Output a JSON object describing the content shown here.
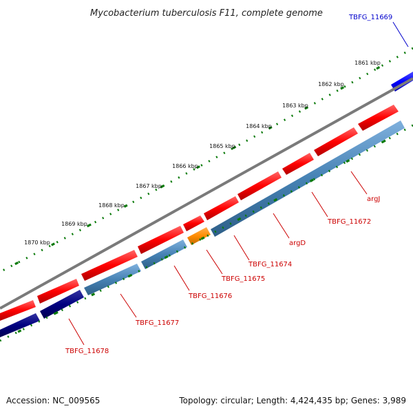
{
  "title": "Mycobacterium tuberculosis F11, complete genome",
  "footer": {
    "accession": "Accession: NC_009565",
    "summary": "Topology: circular; Length: 4,424,435 bp; Genes: 3,989"
  },
  "colors": {
    "forward_gene": "#ff0000",
    "reverse_gene": "#4682b4",
    "reverse_gene_dark": "#000080",
    "highlight_gene": "#ff8c00",
    "outer_gene": "#0000ff",
    "backbone": "#808080",
    "ticks": "#0a7a0a",
    "label_forward": "#cc0000",
    "label_outer": "#0000cc"
  },
  "scale_labels": [
    "1861 kbp",
    "1862 kbp",
    "1863 kbp",
    "1864 kbp",
    "1865 kbp",
    "1866 kbp",
    "1867 kbp",
    "1868 kbp",
    "1869 kbp",
    "1870 kbp"
  ],
  "gene_labels": [
    {
      "name": "TBFG_11669",
      "track": "outer"
    },
    {
      "name": "argJ",
      "track": "reverse"
    },
    {
      "name": "TBFG_11672",
      "track": "reverse"
    },
    {
      "name": "argD",
      "track": "reverse"
    },
    {
      "name": "TBFG_11674",
      "track": "reverse"
    },
    {
      "name": "TBFG_11675",
      "track": "reverse"
    },
    {
      "name": "TBFG_11676",
      "track": "reverse"
    },
    {
      "name": "TBFG_11677",
      "track": "reverse"
    },
    {
      "name": "TBFG_11678",
      "track": "reverse"
    }
  ]
}
